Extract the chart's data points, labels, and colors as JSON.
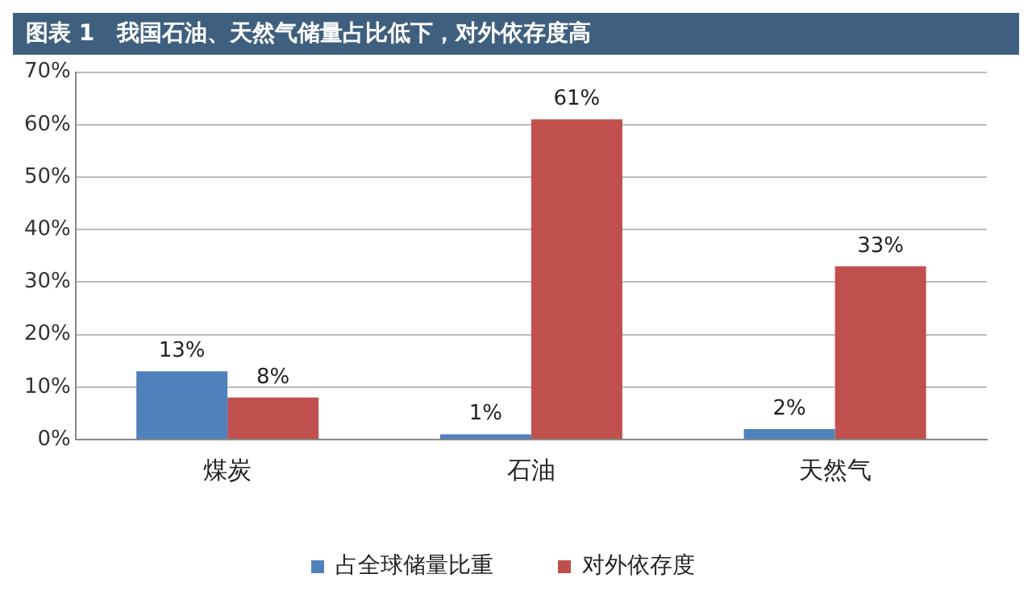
{
  "chart_data": {
    "type": "bar",
    "title": "图表 1　我国石油、天然气储量占比低下，对外依存度高",
    "categories": [
      "煤炭",
      "石油",
      "天然气"
    ],
    "series": [
      {
        "name": "占全球储量比重",
        "color": "#4f81bd",
        "values": [
          13,
          1,
          2
        ],
        "value_labels": [
          "13%",
          "1%",
          "2%"
        ]
      },
      {
        "name": "对外依存度",
        "color": "#c0504d",
        "values": [
          8,
          61,
          33
        ],
        "value_labels": [
          "8%",
          "61%",
          "33%"
        ]
      }
    ],
    "ylim": [
      0,
      70
    ],
    "yticks": [
      {
        "value": 0,
        "label": "0%"
      },
      {
        "value": 10,
        "label": "10%"
      },
      {
        "value": 20,
        "label": "20%"
      },
      {
        "value": 30,
        "label": "30%"
      },
      {
        "value": 40,
        "label": "40%"
      },
      {
        "value": 50,
        "label": "50%"
      },
      {
        "value": 60,
        "label": "60%"
      },
      {
        "value": 70,
        "label": "70%"
      }
    ],
    "grid": "y",
    "legend": "bottom"
  }
}
